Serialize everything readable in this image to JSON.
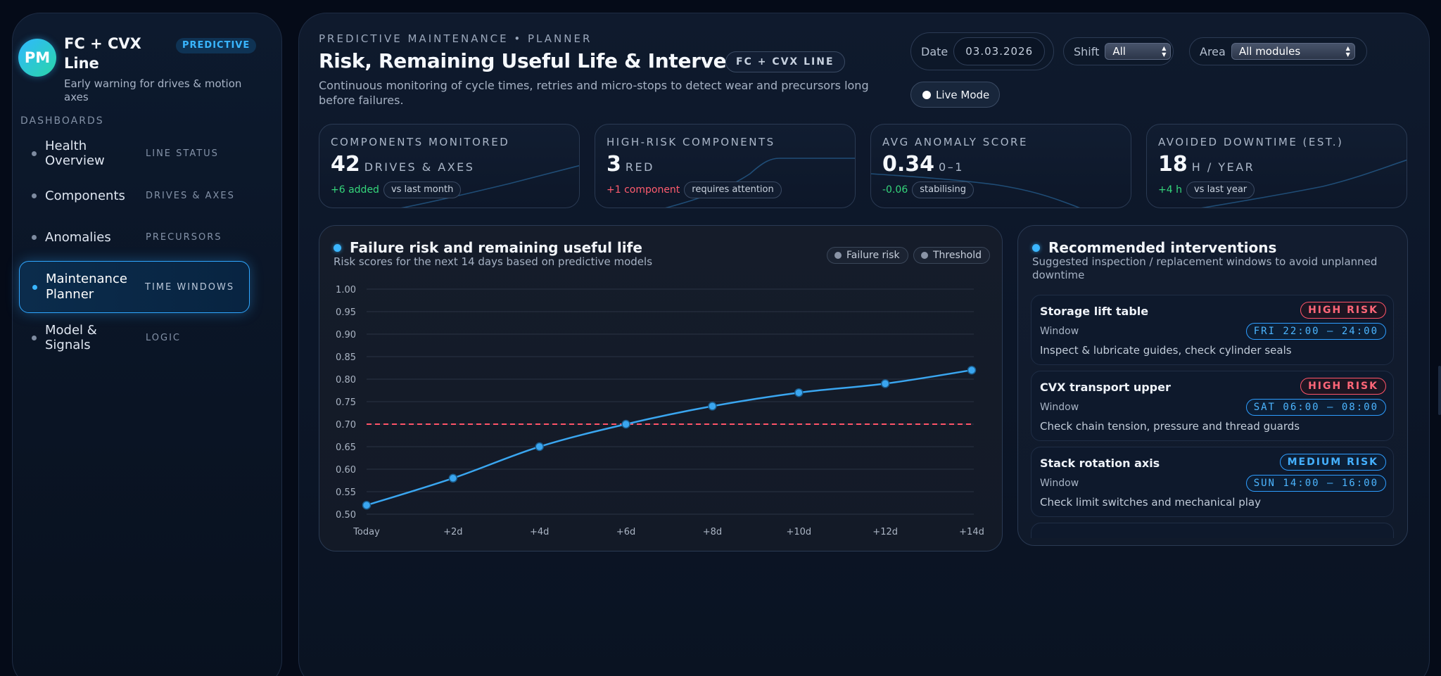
{
  "sidebar": {
    "logo_initials": "PM",
    "brand_name": "FC + CVX Line",
    "brand_badge": "PREDICTIVE",
    "brand_subtitle": "Early warning for drives & motion axes",
    "section_heading": "DASHBOARDS",
    "items": [
      {
        "label": "Health Overview",
        "tag": "LINE STATUS",
        "active": false
      },
      {
        "label": "Components",
        "tag": "DRIVES & AXES",
        "active": false
      },
      {
        "label": "Anomalies",
        "tag": "PRECURSORS",
        "active": false
      },
      {
        "label": "Maintenance Planner",
        "tag": "TIME WINDOWS",
        "active": true
      },
      {
        "label": "Model & Signals",
        "tag": "LOGIC",
        "active": false
      }
    ]
  },
  "header": {
    "eyebrow": "PREDICTIVE MAINTENANCE • PLANNER",
    "title": "Risk, Remaining Useful Life & Interventions",
    "title_badge": "FC + CVX LINE",
    "description": "Continuous monitoring of cycle times, retries and micro-stops to detect wear and precursors long before failures."
  },
  "controls": {
    "date_label": "Date",
    "date_value": "03.03.2026",
    "shift_label": "Shift",
    "shift_value": "All",
    "area_label": "Area",
    "area_value": "All modules",
    "live_mode_label": "Live Mode"
  },
  "kpis": [
    {
      "label": "COMPONENTS MONITORED",
      "value": "42",
      "unit": "DRIVES & AXES",
      "delta": "+6 added",
      "delta_tone": "pos",
      "note": "vs last month"
    },
    {
      "label": "HIGH-RISK COMPONENTS",
      "value": "3",
      "unit": "RED",
      "delta": "+1 component",
      "delta_tone": "neg",
      "note": "requires attention"
    },
    {
      "label": "AVG ANOMALY SCORE",
      "value": "0.34",
      "unit": "0–1",
      "delta": "-0.06",
      "delta_tone": "pos",
      "note": "stabilising"
    },
    {
      "label": "AVOIDED DOWNTIME (EST.)",
      "value": "18",
      "unit": "H / YEAR",
      "delta": "+4 h",
      "delta_tone": "pos",
      "note": "vs last year"
    }
  ],
  "chart_panel": {
    "title": "Failure risk and remaining useful life",
    "subtitle": "Risk scores for the next 14 days based on predictive models",
    "legend": [
      "Failure risk",
      "Threshold"
    ]
  },
  "chart_data": {
    "type": "line",
    "title": "Failure risk and remaining useful life",
    "categories": [
      "Today",
      "+2d",
      "+4d",
      "+6d",
      "+8d",
      "+10d",
      "+12d",
      "+14d"
    ],
    "series": [
      {
        "name": "Failure risk",
        "values": [
          0.52,
          0.58,
          0.65,
          0.7,
          0.74,
          0.77,
          0.79,
          0.82
        ],
        "color": "#3aa6f0"
      },
      {
        "name": "Threshold",
        "values": [
          0.7,
          0.7,
          0.7,
          0.7,
          0.7,
          0.7,
          0.7,
          0.7
        ],
        "color": "#ff5468",
        "dashed": true
      }
    ],
    "yticks": [
      "0.50",
      "0.55",
      "0.60",
      "0.65",
      "0.70",
      "0.75",
      "0.80",
      "0.85",
      "0.90",
      "0.95",
      "1.00"
    ],
    "ylim": [
      0.5,
      1.0
    ],
    "grid": true
  },
  "interventions": {
    "title": "Recommended interventions",
    "subtitle": "Suggested inspection / replacement windows to avoid unplanned downtime",
    "window_label": "Window",
    "items": [
      {
        "name": "Storage lift table",
        "risk": "HIGH RISK",
        "risk_level": "high",
        "window": "FRI 22:00 – 24:00",
        "action": "Inspect & lubricate guides, check cylinder seals"
      },
      {
        "name": "CVX transport upper",
        "risk": "HIGH RISK",
        "risk_level": "high",
        "window": "SAT 06:00 – 08:00",
        "action": "Check chain tension, pressure and thread guards"
      },
      {
        "name": "Stack rotation axis",
        "risk": "MEDIUM RISK",
        "risk_level": "medium",
        "window": "SUN 14:00 – 16:00",
        "action": "Check limit switches and mechanical play"
      }
    ]
  },
  "colors": {
    "accent": "#3bb6ff",
    "risk_high": "#ff5468",
    "positive": "#35d67b",
    "background": "#050b18"
  }
}
